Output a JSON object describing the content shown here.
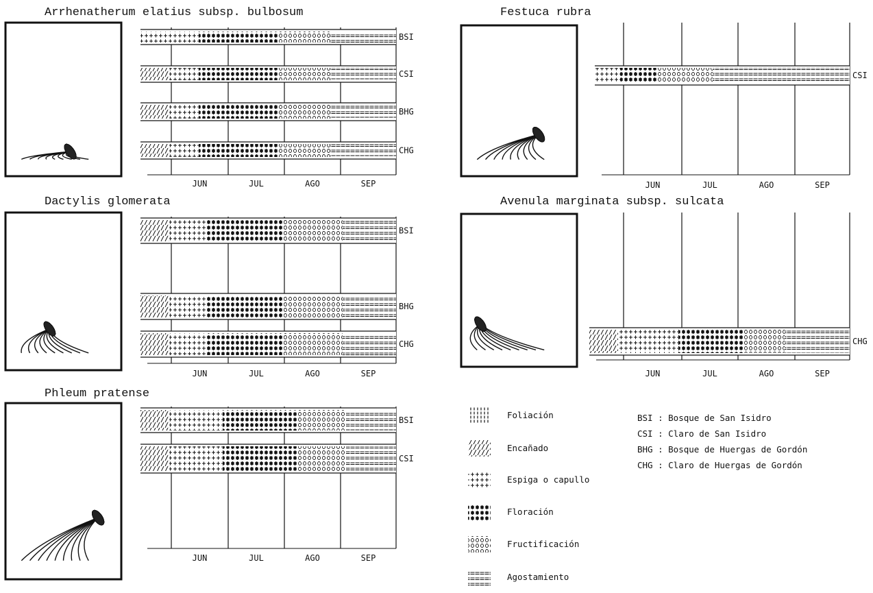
{
  "panels": [
    {
      "title": "Arrhenatherum elatius subsp. bulbosum",
      "months": [
        "JUN",
        "JUL",
        "AGO",
        "SEP"
      ],
      "sites": [
        "BSI",
        "CSI",
        "BHG",
        "CHG"
      ]
    },
    {
      "title": "Festuca rubra",
      "months": [
        "JUN",
        "JUL",
        "AGO",
        "SEP"
      ],
      "sites": [
        "CSI"
      ]
    },
    {
      "title": "Dactylis glomerata",
      "months": [
        "JUN",
        "JUL",
        "AGO",
        "SEP"
      ],
      "sites": [
        "BSI",
        "BHG",
        "CHG"
      ]
    },
    {
      "title": "Avenula marginata subsp. sulcata",
      "months": [
        "JUN",
        "JUL",
        "AGO",
        "SEP"
      ],
      "sites": [
        "CHG"
      ]
    },
    {
      "title": "Phleum pratense",
      "months": [
        "JUN",
        "JUL",
        "AGO",
        "SEP"
      ],
      "sites": [
        "BSI",
        "CSI"
      ]
    }
  ],
  "legend": {
    "phases": [
      "Foliación",
      "Encañado",
      "Espiga o capullo",
      "Floración",
      "Fructificación",
      "Agostamiento"
    ],
    "sites": [
      "BSI : Bosque de San Isidro",
      "CSI : Claro de San Isidro",
      "BHG : Bosque de Huergas de Gordón",
      "CHG : Claro de Huergas de Gordón"
    ]
  }
}
